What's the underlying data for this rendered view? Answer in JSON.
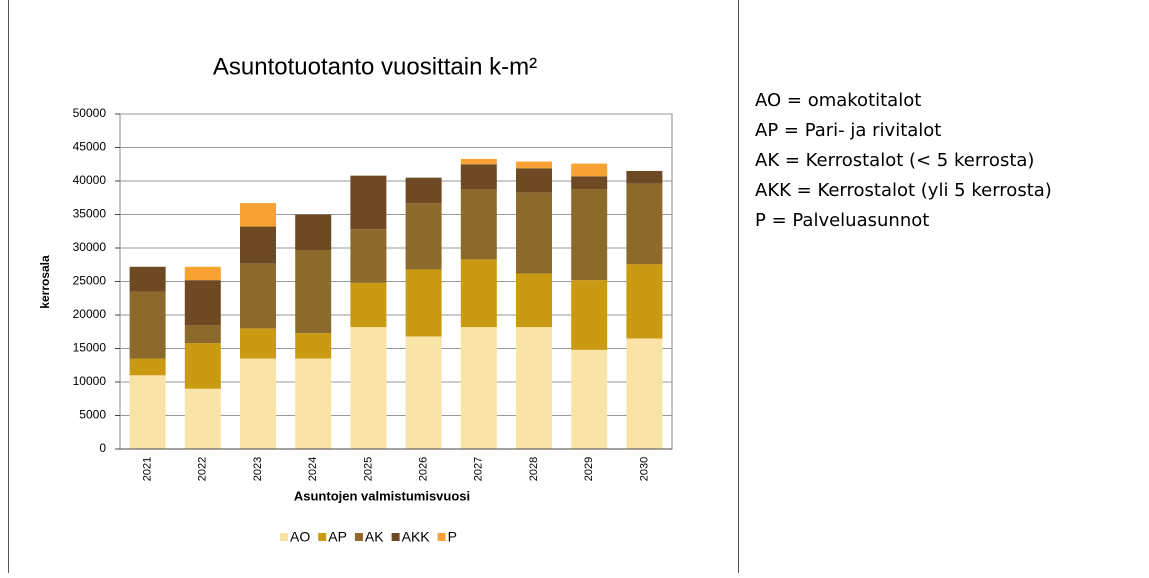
{
  "chart_data": {
    "type": "stacked_bar",
    "title": "Asuntotuotanto vuosittain k-m²",
    "x_label": "Asuntojen  valmistumisvuosi",
    "y_label": "kerrosala",
    "categories": [
      "2021",
      "2022",
      "2023",
      "2024",
      "2025",
      "2026",
      "2027",
      "2028",
      "2029",
      "2030"
    ],
    "series": [
      {
        "name": "AO",
        "color": "#fae3a6",
        "values": [
          11000,
          9000,
          13500,
          13500,
          18200,
          16800,
          18200,
          18200,
          14800,
          16500
        ]
      },
      {
        "name": "AP",
        "color": "#c99a12",
        "values": [
          2500,
          6800,
          4500,
          3800,
          6600,
          10000,
          10100,
          8000,
          10400,
          11100
        ]
      },
      {
        "name": "AK",
        "color": "#8c6a2c",
        "values": [
          10000,
          2700,
          9700,
          12400,
          8000,
          9900,
          10400,
          12100,
          13600,
          12000
        ]
      },
      {
        "name": "AKK",
        "color": "#6e4a24",
        "values": [
          3700,
          6700,
          5500,
          5300,
          8000,
          3800,
          3800,
          3600,
          1900,
          1900
        ]
      },
      {
        "name": "P",
        "color": "#f7a233",
        "values": [
          0,
          2000,
          3500,
          0,
          0,
          0,
          800,
          1000,
          1900,
          0
        ]
      }
    ],
    "ylim": [
      0,
      50000
    ],
    "yticks": [
      0,
      5000,
      10000,
      15000,
      20000,
      25000,
      30000,
      35000,
      40000,
      45000,
      50000
    ],
    "grid": true,
    "legend": "bottom"
  },
  "notes": [
    "AO = omakotitalot",
    "AP  = Pari- ja rivitalot",
    "AK = Kerrostalot (< 5 kerrosta)",
    "AKK = Kerrostalot (yli 5 kerrosta)",
    "P = Palveluasunnot"
  ]
}
